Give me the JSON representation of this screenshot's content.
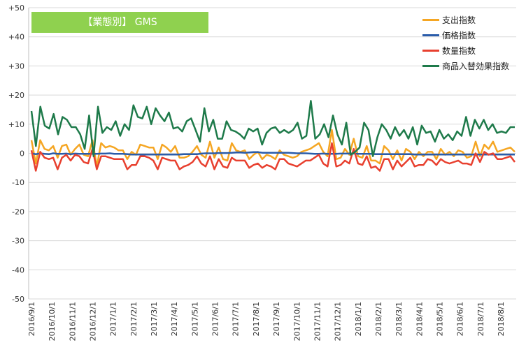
{
  "chart_data": {
    "type": "line",
    "title": "【業態別】 GMS",
    "ylim": [
      -50,
      50
    ],
    "y_ticks": [
      "+50",
      "+40",
      "+30",
      "+20",
      "+10",
      "0",
      "-10",
      "-20",
      "-30",
      "-40",
      "-50"
    ],
    "x_tick_labels": [
      "2016/9/1",
      "2016/10/1",
      "2016/11/1",
      "2016/12/1",
      "2017/1/1",
      "2017/2/1",
      "2017/3/1",
      "2017/4/1",
      "2017/5/1",
      "2017/6/1",
      "2017/7/1",
      "2017/8/1",
      "2017/9/1",
      "2017/10/1",
      "2017/11/1",
      "2017/12/1",
      "2018/1/1",
      "2018/2/1",
      "2018/3/1",
      "2018/4/1",
      "2018/5/1",
      "2018/6/1",
      "2018/7/1",
      "2018/8/1"
    ],
    "grid": true,
    "legend_position": "top-right",
    "series": [
      {
        "name": "支出指数",
        "color": "#f5a623",
        "values": [
          4.5,
          -3.5,
          4.5,
          1.5,
          1.0,
          2.5,
          -1.5,
          2.5,
          3.0,
          -0.5,
          1.5,
          3.0,
          -0.5,
          -1.0,
          4.5,
          -4.5,
          3.5,
          2.0,
          2.5,
          2.0,
          1.0,
          1.0,
          -2.0,
          0.5,
          -0.5,
          3.0,
          2.5,
          2.0,
          2.0,
          -2.0,
          3.0,
          2.0,
          0.5,
          2.5,
          -1.5,
          -1.5,
          -1.0,
          0.5,
          2.5,
          -0.5,
          -1.5,
          4.0,
          -1.5,
          2.0,
          -2.0,
          -2.5,
          3.5,
          1.0,
          0.5,
          1.0,
          -2.0,
          -0.5,
          0.5,
          -2.0,
          -0.5,
          -1.0,
          -2.0,
          1.0,
          -0.5,
          -1.0,
          -1.5,
          -1.0,
          0.5,
          1.0,
          1.5,
          2.5,
          3.5,
          0.5,
          -1.0,
          8.0,
          -2.0,
          -1.5,
          1.5,
          -0.5,
          5.0,
          -1.0,
          -1.5,
          2.5,
          -2.5,
          -2.5,
          -3.5,
          2.5,
          1.0,
          -2.0,
          1.0,
          -2.5,
          1.5,
          0.5,
          -2.0,
          0.5,
          -1.0,
          0.5,
          0.5,
          -2.0,
          1.5,
          -0.5,
          0.5,
          -1.0,
          1.0,
          0.5,
          -1.5,
          -1.0,
          4.0,
          -1.0,
          3.0,
          1.5,
          4.0,
          0.5,
          1.0,
          1.5,
          2.0,
          0.5
        ],
        "values_note": ""
      },
      {
        "name": "価格指数",
        "color": "#2a5caa",
        "values": [
          0.0,
          -0.3,
          0.0,
          -0.2,
          -0.3,
          0.0,
          -0.2,
          -0.2,
          -0.1,
          -0.3,
          -0.1,
          -0.2,
          -0.2,
          -0.2,
          -0.2,
          -0.2,
          -0.1,
          -0.1,
          0.0,
          -0.2,
          -0.2,
          -0.2,
          -0.3,
          -0.4,
          -0.4,
          -0.4,
          -0.4,
          -0.4,
          -0.4,
          -0.4,
          -0.4,
          -0.4,
          -0.4,
          -0.4,
          -0.4,
          -0.3,
          -0.3,
          -0.3,
          -0.3,
          -0.1,
          0.0,
          0.0,
          0.0,
          0.1,
          0.1,
          0.1,
          0.2,
          0.3,
          0.3,
          0.2,
          0.3,
          0.4,
          0.4,
          0.2,
          0.2,
          0.2,
          0.2,
          0.2,
          0.2,
          0.2,
          0.1,
          0.0,
          0.0,
          0.0,
          -0.1,
          -0.2,
          -0.2,
          -0.1,
          -0.2,
          -0.2,
          -0.2,
          -0.1,
          -0.1,
          -0.1,
          -0.1,
          -0.2,
          -0.2,
          -0.2,
          -0.2,
          -0.3,
          -0.3,
          -0.3,
          -0.3,
          -0.3,
          -0.3,
          -0.3,
          -0.3,
          -0.3,
          -0.4,
          -0.4,
          -0.4,
          -0.4,
          -0.4,
          -0.4,
          -0.4,
          -0.4,
          -0.4,
          -0.4,
          -0.4,
          -0.4,
          -0.4,
          -0.4,
          -0.4,
          -0.4,
          -0.4,
          -0.4,
          -0.4,
          -0.4,
          -0.4,
          -0.4,
          -0.4,
          -0.4
        ]
      },
      {
        "name": "数量指数",
        "color": "#e8402f",
        "values": [
          1.0,
          -6.0,
          0.5,
          -1.5,
          -2.0,
          -1.5,
          -5.5,
          -1.5,
          -0.5,
          -2.5,
          -0.5,
          -1.0,
          -3.0,
          -3.5,
          1.5,
          -5.5,
          -1.0,
          -1.0,
          -1.5,
          -2.0,
          -2.0,
          -2.0,
          -5.5,
          -4.0,
          -4.0,
          -1.0,
          -1.0,
          -1.5,
          -2.5,
          -5.5,
          -1.5,
          -2.0,
          -2.5,
          -2.5,
          -5.5,
          -4.5,
          -4.0,
          -3.0,
          -1.0,
          -3.5,
          -4.5,
          -1.0,
          -5.5,
          -2.0,
          -4.5,
          -5.0,
          -1.5,
          -2.5,
          -2.5,
          -2.5,
          -5.0,
          -4.0,
          -3.5,
          -5.0,
          -4.0,
          -4.5,
          -5.5,
          -2.0,
          -2.0,
          -3.5,
          -4.0,
          -4.5,
          -3.5,
          -2.5,
          -2.5,
          -1.5,
          -0.5,
          -3.5,
          -4.5,
          3.5,
          -4.5,
          -4.0,
          -2.5,
          -3.5,
          1.5,
          -3.5,
          -4.0,
          -1.0,
          -5.0,
          -4.5,
          -6.0,
          -2.0,
          -2.0,
          -5.5,
          -2.5,
          -4.5,
          -3.0,
          -1.5,
          -4.5,
          -4.0,
          -4.0,
          -2.0,
          -2.5,
          -4.0,
          -2.0,
          -3.0,
          -3.5,
          -3.0,
          -2.5,
          -3.5,
          -3.5,
          -4.0,
          0.0,
          -3.0,
          0.5,
          -0.5,
          0.0,
          -2.0,
          -2.0,
          -1.5,
          -1.0,
          -3.0
        ]
      },
      {
        "name": "商品入替効果指数",
        "color": "#1e7a4a",
        "values": [
          14.5,
          2.5,
          16.0,
          9.5,
          8.5,
          13.5,
          6.5,
          12.5,
          11.5,
          9.0,
          9.0,
          6.5,
          1.5,
          13.0,
          -1.0,
          16.0,
          7.0,
          9.0,
          8.0,
          11.0,
          6.0,
          10.0,
          8.0,
          16.5,
          12.5,
          12.0,
          16.0,
          10.0,
          15.5,
          13.0,
          11.0,
          14.0,
          8.5,
          9.0,
          7.5,
          11.0,
          12.0,
          8.0,
          4.0,
          15.5,
          7.5,
          11.5,
          5.0,
          5.0,
          11.0,
          8.0,
          7.5,
          6.5,
          5.0,
          8.5,
          7.5,
          8.5,
          3.0,
          7.0,
          8.5,
          9.0,
          7.0,
          8.0,
          7.0,
          8.0,
          10.5,
          5.0,
          6.0,
          18.0,
          5.0,
          6.5,
          10.0,
          5.5,
          13.0,
          6.5,
          3.0,
          10.5,
          -0.5,
          0.5,
          2.0,
          10.5,
          8.0,
          -1.0,
          5.5,
          10.0,
          8.0,
          5.0,
          9.0,
          6.0,
          8.0,
          5.0,
          9.0,
          3.0,
          9.5,
          7.0,
          7.5,
          4.0,
          8.0,
          5.0,
          6.5,
          4.5,
          7.5,
          6.0,
          12.5,
          6.0,
          11.5,
          8.5,
          11.5,
          8.0,
          10.0,
          7.0,
          7.5,
          7.0,
          9.0,
          9.0
        ]
      }
    ]
  }
}
